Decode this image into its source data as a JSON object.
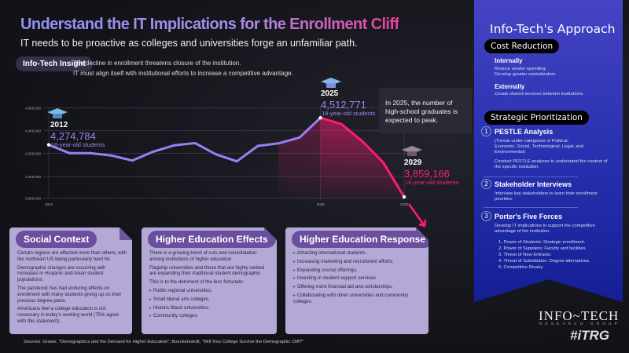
{
  "header": {
    "title": "Understand the IT Implications for the Enrollment Cliff",
    "subtitle": "IT needs to be proactive as colleges and universities forge an unfamiliar path.",
    "insight_label": "Info-Tech Insight",
    "insight_lines": [
      "The decline in enrollment threatens closure of the institution.",
      "IT must align itself with institutional efforts to increase a competitive advantage."
    ]
  },
  "chart_data": {
    "type": "line",
    "x": [
      2012,
      2013,
      2014,
      2015,
      2016,
      2017,
      2018,
      2019,
      2020,
      2021,
      2022,
      2023,
      2024,
      2025,
      2026,
      2027,
      2028,
      2029
    ],
    "values": [
      4274784,
      4200000,
      4200000,
      4180000,
      4137000,
      4214000,
      4270000,
      4290000,
      4190000,
      4130000,
      4265000,
      4288000,
      4340000,
      4512771,
      4458000,
      4307000,
      4120000,
      3859166
    ],
    "x_ticks": [
      "2012",
      "2025",
      "2029"
    ],
    "y_ticks": [
      "4,600,000",
      "4,400,000",
      "4,200,000",
      "4,000,000",
      "3,850,000"
    ],
    "y_tick_values": [
      4600000,
      4400000,
      4200000,
      4000000,
      3850000
    ],
    "grid": true,
    "colors": {
      "rising": "#9b7ff2",
      "falling": "#ff1a73"
    },
    "annotations": [
      {
        "year": "2012",
        "value": "4,274,784",
        "sub": "18-year-old students"
      },
      {
        "year": "2025",
        "value": "4,512,771",
        "sub": "18-year-old students"
      },
      {
        "year": "2029",
        "value": "3,859,166",
        "sub": "18-year-old students"
      }
    ],
    "callout": "In 2025, the number of high-school graduates is expected to peak."
  },
  "cards": [
    {
      "title": "Social Context",
      "paragraphs": [
        "Certain regions are affected more than others, with the northeast US being particularly hard hit.",
        "Demographic changes are occurring with increases in Hispanic and Asian student populations.",
        "The pandemic has had enduring effects on enrollment with many students giving up on their previous degree plans.",
        "Americans feel a college education is not necessary in today's working world (75% agree with this statement)."
      ],
      "bullets": []
    },
    {
      "title": "Higher Education Effects",
      "paragraphs": [
        "There is a growing trend of cuts and consolidation among institutions of higher education.",
        "Flagship universities and those that are highly ranked are expanding their traditional student demographic.",
        "This is to the detriment of the less fortunate:"
      ],
      "bullets": [
        "Public regional universities.",
        "Small liberal arts colleges.",
        "Historic Black universities.",
        "Community colleges."
      ]
    },
    {
      "title": "Higher Education Response",
      "paragraphs": [],
      "bullets": [
        "Attracting international students.",
        "Increasing marketing and recruitment efforts.",
        "Expanding course offerings.",
        "Investing in student support services.",
        "Offering more financial aid and scholarships.",
        "Collaborating with other universities and community colleges."
      ]
    }
  ],
  "sources": "Sources: Grawe, \"Demographics and the Demand for Higher Education\"; Boeckenstedt, \"Will Your College Survive the Demographic Cliff?\"",
  "panel": {
    "title": "Info-Tech's Approach",
    "cost": {
      "label": "Cost Reduction",
      "internal_h": "Internally",
      "internal_t": "Reduce vendor spending.\nDevelop greater centralization.",
      "external_h": "Externally",
      "external_t": "Create shared services between institutions."
    },
    "strategic": {
      "label": "Strategic Prioritization",
      "items": [
        {
          "num": "1",
          "title": "PESTLE Analysis",
          "text": "(Trends under categories of Political, Economic, Social, Technological, Legal, and Environmental)",
          "text2": "Conduct PESTLE analyses to understand the context of the specific institution."
        },
        {
          "num": "2",
          "title": "Stakeholder Interviews",
          "text": "Interview key stakeholders to learn their enrollment priorities."
        },
        {
          "num": "3",
          "title": "Porter's Five Forces",
          "text": "Develop IT implications to support the competitive advantage of the institution.",
          "list": [
            "1. Power of Students: Strategic enrollment.",
            "2. Power of Suppliers: Faculty and facilities.",
            "3. Threat of New Entrants.",
            "4. Threat of Substitution: Degree alternatives.",
            "5. Competitive Rivalry."
          ]
        }
      ]
    }
  },
  "logo": {
    "name": "INFO~TECH",
    "sub": "RESEARCH GROUP",
    "hashtag": "#iTRG"
  }
}
